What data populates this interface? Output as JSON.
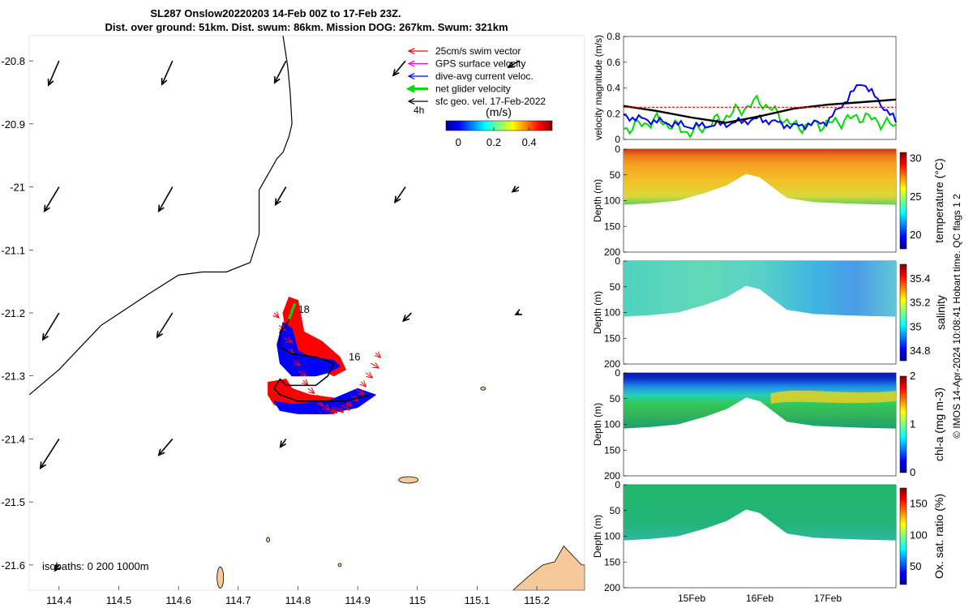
{
  "title": {
    "line1": "SL287 Onslow20220203 14-Feb 00Z to 17-Feb 23Z.",
    "line2": "Dist. over ground: 51km. Dist. swum: 86km. Mission DOG: 267km. Swum: 321km"
  },
  "side_label": "© IMOS 14-Apr-2024 10:08:41 Hobart time. QC flags 1  2",
  "colors": {
    "swim_vector": "#ff0000",
    "gps_velocity": "#ff00ff",
    "dive_avg_current": "#0000ff",
    "net_glider_velocity": "#00dd00",
    "geostrophic_velocity": "#000000",
    "land": "#f7c99a",
    "track_red": "#ff0000",
    "track_blue": "#0000ff"
  },
  "map": {
    "xticks": [
      "114.4",
      "114.5",
      "114.6",
      "114.7",
      "114.8",
      "114.9",
      "115",
      "115.1",
      "115.2"
    ],
    "yticks": [
      "-20.8",
      "-20.9",
      "-21",
      "-21.1",
      "-21.2",
      "-21.3",
      "-21.4",
      "-21.5",
      "-21.6"
    ],
    "xlim": [
      114.35,
      115.28
    ],
    "ylim": [
      -21.64,
      -20.76
    ],
    "isobaths_label": "isobaths: 0   200  1000m",
    "legend": {
      "items": [
        {
          "label": "25cm/s swim vector",
          "color": "#ff0000"
        },
        {
          "label": "GPS surface velocity",
          "color": "#ff00ff"
        },
        {
          "label": "dive-avg current veloc.",
          "color": "#0000ff"
        },
        {
          "label": "net glider velocity",
          "color": "#00dd00"
        },
        {
          "label": "sfc geo. vel. 17-Feb-2022",
          "color": "#000000"
        }
      ],
      "four_h": "4h",
      "colorbar_unit": "(m/s)",
      "colorbar_ticks": [
        "0",
        "0.2",
        "0.4"
      ],
      "colorbar_range": [
        -0.07,
        0.53
      ]
    },
    "track_labels": [
      "18",
      "16"
    ],
    "isobath_line": [
      [
        114.35,
        -21.33
      ],
      [
        114.4,
        -21.29
      ],
      [
        114.47,
        -21.22
      ],
      [
        114.55,
        -21.17
      ],
      [
        114.6,
        -21.14
      ],
      [
        114.64,
        -21.135
      ],
      [
        114.68,
        -21.135
      ],
      [
        114.72,
        -21.12
      ],
      [
        114.735,
        -21.075
      ],
      [
        114.735,
        -21.005
      ],
      [
        114.765,
        -20.955
      ],
      [
        114.775,
        -20.945
      ],
      [
        114.785,
        -20.92
      ],
      [
        114.79,
        -20.9
      ],
      [
        114.787,
        -20.85
      ],
      [
        114.783,
        -20.81
      ],
      [
        114.775,
        -20.76
      ]
    ],
    "geo_vectors": [
      {
        "lon": 114.4,
        "lat": -20.8,
        "u": -0.13,
        "v": -0.3
      },
      {
        "lon": 114.59,
        "lat": -20.8,
        "u": -0.13,
        "v": -0.29
      },
      {
        "lon": 114.78,
        "lat": -20.8,
        "u": -0.14,
        "v": -0.27
      },
      {
        "lon": 114.98,
        "lat": -20.8,
        "u": -0.15,
        "v": -0.18
      },
      {
        "lon": 115.17,
        "lat": -20.8,
        "u": -0.13,
        "v": -0.08
      },
      {
        "lon": 114.4,
        "lat": -21.0,
        "u": -0.18,
        "v": -0.3
      },
      {
        "lon": 114.59,
        "lat": -21.0,
        "u": -0.17,
        "v": -0.3
      },
      {
        "lon": 114.78,
        "lat": -21.0,
        "u": -0.13,
        "v": -0.22
      },
      {
        "lon": 114.98,
        "lat": -21.0,
        "u": -0.13,
        "v": -0.19
      },
      {
        "lon": 115.17,
        "lat": -21.0,
        "u": -0.08,
        "v": -0.06
      },
      {
        "lon": 114.4,
        "lat": -21.2,
        "u": -0.2,
        "v": -0.33
      },
      {
        "lon": 114.59,
        "lat": -21.2,
        "u": -0.19,
        "v": -0.3
      },
      {
        "lon": 114.99,
        "lat": -21.2,
        "u": -0.1,
        "v": -0.1
      },
      {
        "lon": 115.17,
        "lat": -21.2,
        "u": -0.04,
        "v": -0.02
      },
      {
        "lon": 114.4,
        "lat": -21.4,
        "u": -0.23,
        "v": -0.36
      },
      {
        "lon": 114.59,
        "lat": -21.4,
        "u": -0.17,
        "v": -0.2
      },
      {
        "lon": 114.78,
        "lat": -21.4,
        "u": -0.07,
        "v": -0.1
      },
      {
        "lon": 114.4,
        "lat": -21.6,
        "u": -0.05,
        "v": -0.07
      }
    ],
    "track_points": [
      [
        114.79,
        -21.2
      ],
      [
        114.78,
        -21.22
      ],
      [
        114.77,
        -21.23
      ],
      [
        114.77,
        -21.255
      ],
      [
        114.79,
        -21.265
      ],
      [
        114.83,
        -21.27
      ],
      [
        114.86,
        -21.28
      ],
      [
        114.85,
        -21.3
      ],
      [
        114.83,
        -21.315
      ],
      [
        114.78,
        -21.315
      ],
      [
        114.77,
        -21.305
      ],
      [
        114.76,
        -21.32
      ],
      [
        114.77,
        -21.33
      ],
      [
        114.8,
        -21.34
      ],
      [
        114.88,
        -21.34
      ],
      [
        114.92,
        -21.33
      ]
    ],
    "islands": [
      {
        "lon": 114.985,
        "lat": -21.465,
        "rx": 12,
        "ry": 4
      },
      {
        "lon": 115.11,
        "lat": -21.32,
        "rx": 3,
        "ry": 2
      },
      {
        "lon": 114.67,
        "lat": -21.62,
        "rx": 4,
        "ry": 13
      },
      {
        "lon": 114.75,
        "lat": -21.56,
        "rx": 2,
        "ry": 3
      },
      {
        "lon": 114.87,
        "lat": -21.6,
        "rx": 2,
        "ry": 2
      }
    ]
  },
  "panels": {
    "velocity": {
      "ylabel": "velocity magnitude (m/s)",
      "yticks": [
        "0",
        "0.2",
        "0.4",
        "0.6",
        "0.8"
      ],
      "ylim": [
        0,
        0.8
      ]
    },
    "temperature": {
      "ylabel": "Depth (m)",
      "cbar_label": "temperature (°C)",
      "cbar_ticks": [
        "20",
        "25",
        "30"
      ],
      "cbar_range": [
        18.2,
        30.8
      ]
    },
    "salinity": {
      "ylabel": "Depth (m)",
      "cbar_label": "salinity",
      "cbar_ticks": [
        "34.8",
        "35",
        "35.2",
        "35.4"
      ],
      "cbar_range": [
        34.72,
        35.52
      ]
    },
    "chla": {
      "ylabel": "Depth (m)",
      "cbar_label": "chl-a (mg m-3)",
      "cbar_ticks": [
        "0",
        "1",
        "2"
      ],
      "cbar_range": [
        0,
        2
      ]
    },
    "oxygen": {
      "ylabel": "Depth (m)",
      "cbar_label": "Ox. sat. ratio (%)",
      "cbar_ticks": [
        "50",
        "100",
        "150"
      ],
      "cbar_range": [
        22,
        175
      ]
    },
    "depth_ticks": [
      "0",
      "50",
      "100",
      "150",
      "200"
    ],
    "depth_lim": [
      0,
      200
    ],
    "time_ticks": [
      "15Feb",
      "16Feb",
      "17Feb"
    ]
  },
  "chart_data": [
    {
      "type": "line",
      "title": "",
      "xlabel": "",
      "ylabel": "velocity magnitude (m/s)",
      "x": [
        "14Feb",
        "14.5Feb",
        "15Feb",
        "15.5Feb",
        "16Feb",
        "16.5Feb",
        "17Feb",
        "17.5Feb",
        "18Feb"
      ],
      "ylim": [
        0,
        0.8
      ],
      "series": [
        {
          "color": "#00dd00",
          "values": [
            0.08,
            0.15,
            0.05,
            0.18,
            0.3,
            0.1,
            0.12,
            0.18,
            0.1
          ]
        },
        {
          "color": "#0000ff",
          "values": [
            0.18,
            0.14,
            0.1,
            0.12,
            0.16,
            0.1,
            0.14,
            0.45,
            0.14
          ]
        },
        {
          "color": "#000000",
          "values": [
            0.26,
            0.22,
            0.17,
            0.13,
            0.18,
            0.24,
            0.27,
            0.29,
            0.31
          ]
        },
        {
          "color": "#ff0000",
          "values": [
            0.25,
            0.25,
            0.25,
            0.25,
            0.25,
            0.25,
            0.25,
            0.25,
            0.25
          ]
        }
      ]
    },
    {
      "type": "heatmap",
      "ylabel": "Depth (m)",
      "colorbar_label": "temperature (°C)",
      "x": [
        "15Feb",
        "16Feb",
        "17Feb"
      ],
      "ylim": [
        200,
        0
      ],
      "bottom_profile_time_frac": [
        0,
        0.1,
        0.2,
        0.3,
        0.38,
        0.45,
        0.5,
        0.55,
        0.6,
        0.7,
        0.8,
        0.9,
        1
      ],
      "bottom_profile_depth_m": [
        108,
        105,
        100,
        85,
        70,
        48,
        55,
        75,
        95,
        103,
        105,
        107,
        108
      ]
    },
    {
      "type": "heatmap",
      "ylabel": "Depth (m)",
      "colorbar_label": "salinity",
      "x": [
        "15Feb",
        "16Feb",
        "17Feb"
      ],
      "ylim": [
        200,
        0
      ]
    },
    {
      "type": "heatmap",
      "ylabel": "Depth (m)",
      "colorbar_label": "chl-a (mg m-3)",
      "x": [
        "15Feb",
        "16Feb",
        "17Feb"
      ],
      "ylim": [
        200,
        0
      ]
    },
    {
      "type": "heatmap",
      "ylabel": "Depth (m)",
      "colorbar_label": "Ox. sat. ratio (%)",
      "x": [
        "15Feb",
        "16Feb",
        "17Feb"
      ],
      "ylim": [
        200,
        0
      ]
    }
  ]
}
